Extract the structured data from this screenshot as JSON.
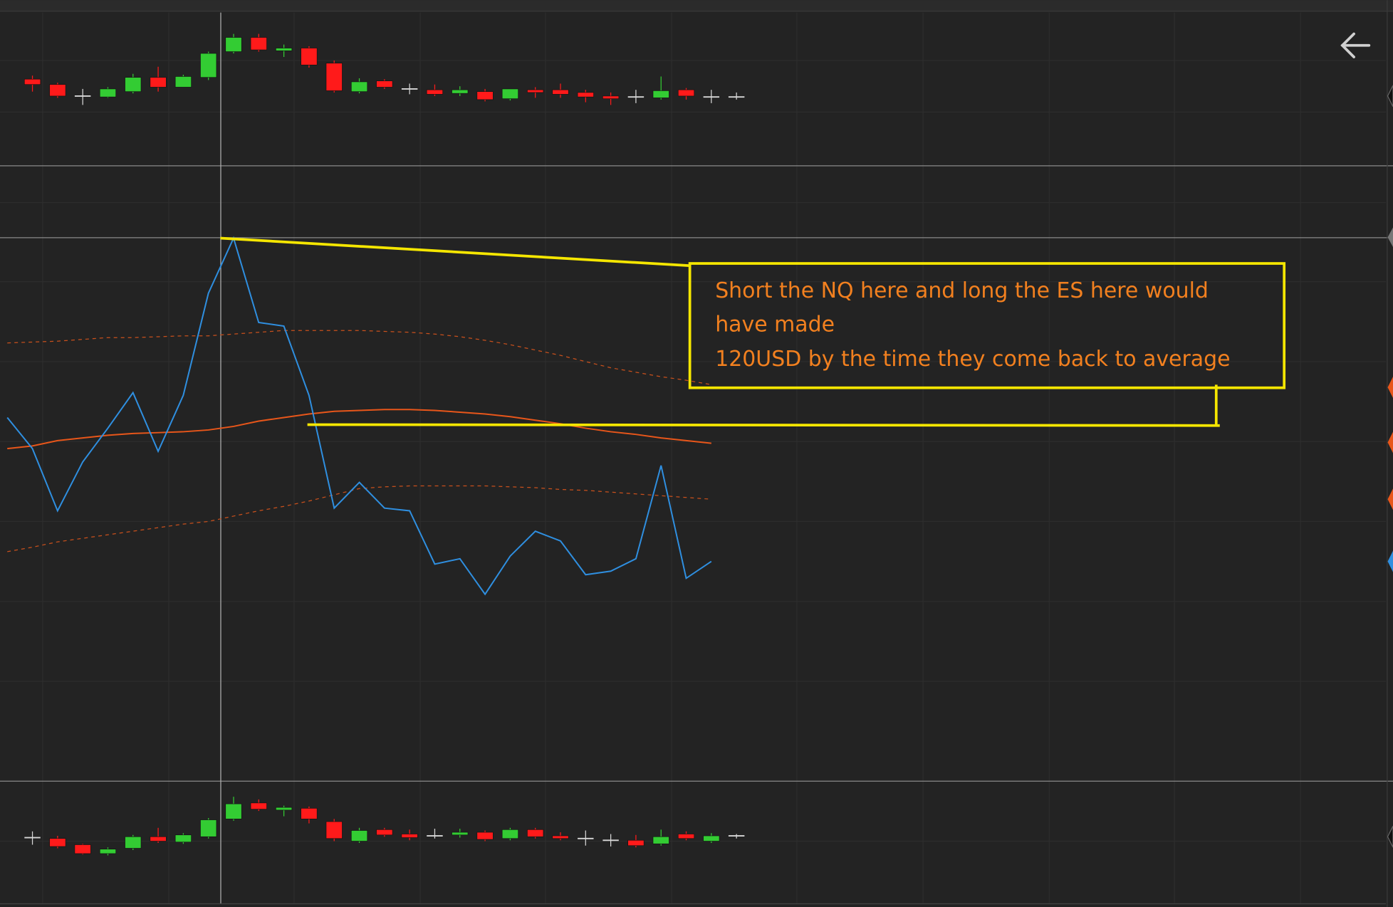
{
  "chart_data": [
    {
      "type": "candlestick",
      "up_color": "#33cc33",
      "down_color": "#ff1a1a",
      "xlim": [
        -0.29,
        55.11
      ],
      "ylim": [
        0,
        172
      ],
      "x": [
        1,
        2,
        3,
        4,
        5,
        6,
        7,
        8,
        9,
        10,
        11,
        12,
        13,
        14,
        15,
        16,
        17,
        18,
        19,
        20,
        21,
        22,
        23,
        24,
        25,
        26,
        27,
        28,
        29
      ],
      "open": [
        97,
        91,
        78,
        77,
        83,
        99,
        88,
        99,
        128,
        144,
        129,
        132,
        115,
        83,
        95,
        86,
        85,
        81,
        83,
        75,
        85,
        85,
        82,
        78,
        77,
        76,
        85,
        77,
        77
      ],
      "high": [
        101,
        93,
        86,
        88,
        103,
        111,
        102,
        128,
        148,
        148,
        136,
        134,
        118,
        98,
        97,
        92,
        91,
        89,
        86,
        86,
        88,
        92,
        85,
        82,
        85,
        100,
        87,
        85,
        82
      ],
      "low": [
        83,
        76,
        68,
        76,
        81,
        83,
        88,
        96,
        126,
        128,
        122,
        110,
        82,
        81,
        86,
        80,
        78,
        78,
        72,
        73,
        76,
        76,
        71,
        68,
        70,
        74,
        74,
        70,
        74
      ],
      "close": [
        91,
        78,
        78,
        86,
        99,
        88,
        100,
        126,
        144,
        130,
        132,
        113,
        84,
        94,
        88,
        86,
        80,
        85,
        74,
        86,
        82,
        80,
        77,
        75,
        77,
        84,
        78,
        77,
        77
      ]
    },
    {
      "type": "line",
      "xlim": [
        -0.29,
        55.11
      ],
      "ylim": [
        0,
        613
      ],
      "x": [
        0,
        1,
        2,
        3,
        4,
        5,
        6,
        7,
        8,
        9,
        10,
        11,
        12,
        13,
        14,
        15,
        16,
        17,
        18,
        19,
        20,
        21,
        22,
        23,
        24,
        25,
        26,
        27,
        28
      ],
      "series": [
        {
          "color": "#c9501c",
          "dashed": true,
          "values": [
            494,
            495,
            496,
            498,
            500,
            500,
            501,
            502,
            502,
            504,
            506,
            508,
            508,
            508,
            508,
            507,
            506,
            504,
            501,
            497,
            492,
            486,
            480,
            473,
            466,
            461,
            456,
            452,
            447
          ]
        },
        {
          "color": "#c9501c",
          "dashed": true,
          "values": [
            259,
            264,
            270,
            274,
            278,
            282,
            286,
            290,
            293,
            299,
            305,
            310,
            316,
            323,
            330,
            332,
            333,
            333,
            333,
            333,
            332,
            331,
            329,
            328,
            326,
            324,
            322,
            320,
            318
          ]
        },
        {
          "color": "#e8561a",
          "dashed": false,
          "values": [
            375,
            378,
            384,
            387,
            390,
            392,
            393,
            394,
            396,
            400,
            406,
            410,
            414,
            417,
            418,
            419,
            419,
            418,
            416,
            414,
            411,
            407,
            403,
            398,
            394,
            391,
            387,
            384,
            381
          ]
        },
        {
          "color": "#2f8fe0",
          "dashed": false,
          "values": [
            410,
            375,
            305,
            360,
            398,
            438,
            372,
            435,
            550,
            612,
            517,
            513,
            435,
            308,
            337,
            308,
            305,
            245,
            251,
            211,
            254,
            282,
            271,
            233,
            237,
            251,
            356,
            229,
            248
          ]
        }
      ],
      "annotation": [
        "Short the NQ here and long the ES here would",
        "have made",
        "120USD by the time they come back to average"
      ]
    },
    {
      "type": "candlestick",
      "up_color": "#33cc33",
      "down_color": "#ff1a1a",
      "xlim": [
        -0.29,
        55.11
      ],
      "ylim": [
        0,
        135
      ],
      "x": [
        1,
        2,
        3,
        4,
        5,
        6,
        7,
        8,
        9,
        10,
        11,
        12,
        13,
        14,
        15,
        16,
        17,
        18,
        19,
        20,
        21,
        22,
        23,
        24,
        25,
        26,
        27,
        28,
        29
      ],
      "open": [
        72,
        71,
        64,
        54,
        60,
        73,
        67,
        73,
        93,
        111,
        103,
        105,
        90,
        68,
        81,
        76,
        74,
        75,
        78,
        71,
        81,
        74,
        71,
        69,
        69,
        65,
        76,
        68,
        74
      ],
      "high": [
        79,
        74,
        65,
        61,
        75,
        83,
        77,
        94,
        118,
        115,
        108,
        107,
        93,
        83,
        83,
        81,
        82,
        82,
        80,
        83,
        83,
        78,
        80,
        76,
        75,
        81,
        79,
        77,
        76
      ],
      "low": [
        64,
        60,
        53,
        52,
        58,
        66,
        65,
        71,
        91,
        102,
        96,
        88,
        68,
        66,
        73,
        69,
        71,
        72,
        68,
        69,
        71,
        69,
        63,
        62,
        61,
        63,
        69,
        66,
        71
      ],
      "close": [
        72,
        62,
        54,
        59,
        73,
        68,
        75,
        92,
        110,
        104,
        106,
        93,
        71,
        80,
        75,
        72,
        74,
        78,
        70,
        81,
        73,
        71,
        71,
        69,
        63,
        73,
        71,
        74,
        74
      ]
    }
  ]
}
